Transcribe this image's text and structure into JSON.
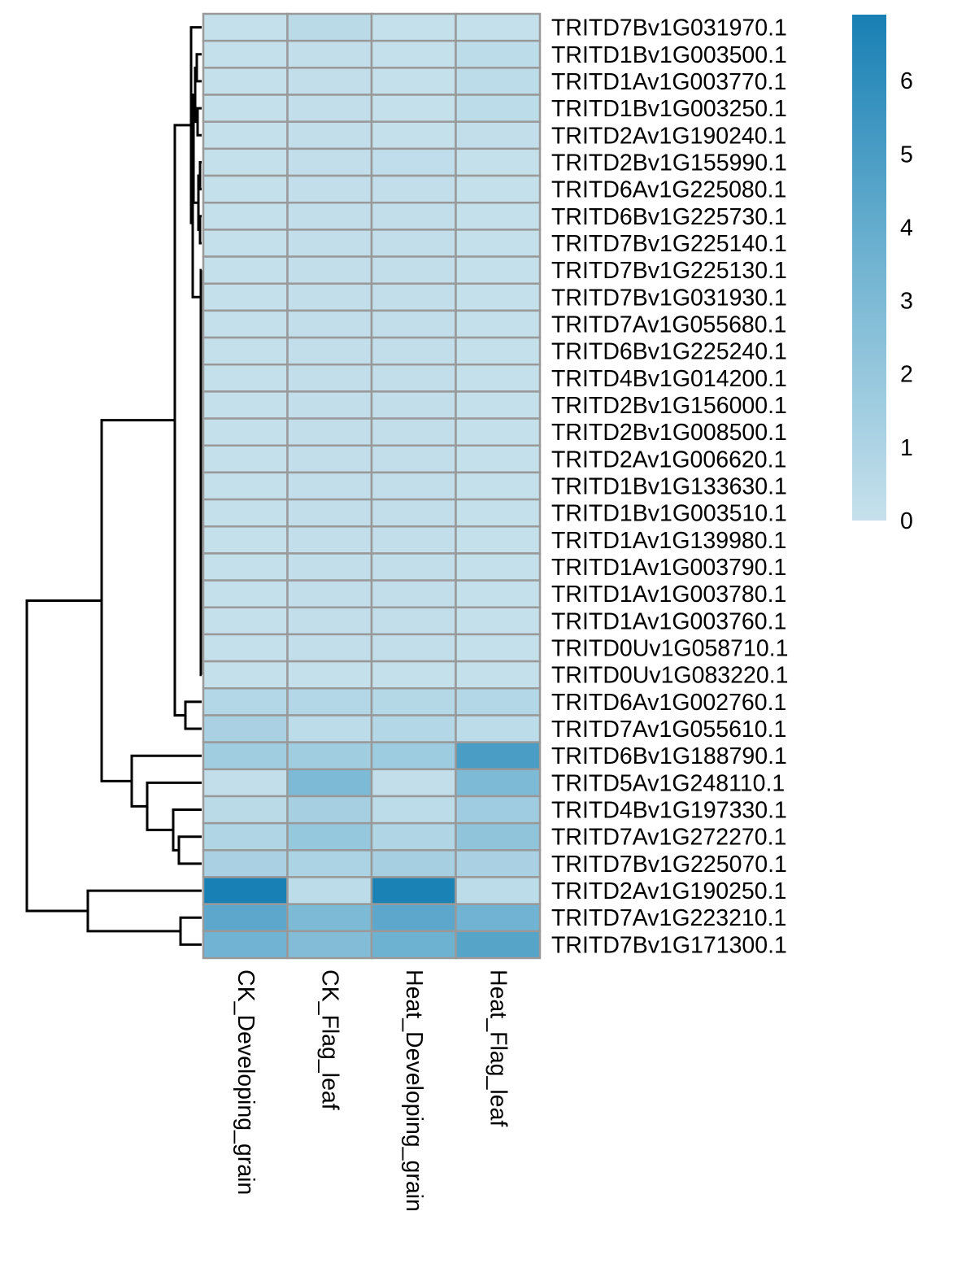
{
  "chart_data": {
    "type": "heatmap",
    "title": "",
    "columns": [
      "CK_Developing_grain",
      "CK_Flag_leaf",
      "Heat_Developing_grain",
      "Heat_Flag_leaf"
    ],
    "rows": [
      "TRITD7Bv1G031970.1",
      "TRITD1Bv1G003500.1",
      "TRITD1Av1G003770.1",
      "TRITD1Bv1G003250.1",
      "TRITD2Av1G190240.1",
      "TRITD2Bv1G155990.1",
      "TRITD6Av1G225080.1",
      "TRITD6Bv1G225730.1",
      "TRITD7Bv1G225140.1",
      "TRITD7Bv1G225130.1",
      "TRITD7Bv1G031930.1",
      "TRITD7Av1G055680.1",
      "TRITD6Bv1G225240.1",
      "TRITD4Bv1G014200.1",
      "TRITD2Bv1G156000.1",
      "TRITD2Bv1G008500.1",
      "TRITD2Av1G006620.1",
      "TRITD1Bv1G133630.1",
      "TRITD1Bv1G003510.1",
      "TRITD1Av1G139980.1",
      "TRITD1Av1G003790.1",
      "TRITD1Av1G003780.1",
      "TRITD1Av1G003760.1",
      "TRITD0Uv1G058710.1",
      "TRITD0Uv1G083220.1",
      "TRITD6Av1G002760.1",
      "TRITD7Av1G055610.1",
      "TRITD6Bv1G188790.1",
      "TRITD5Av1G248110.1",
      "TRITD4Bv1G197330.1",
      "TRITD7Av1G272270.1",
      "TRITD7Bv1G225070.1",
      "TRITD2Av1G190250.1",
      "TRITD7Av1G223210.1",
      "TRITD7Bv1G171300.1"
    ],
    "values": [
      [
        0.1,
        0.5,
        0.1,
        0.1
      ],
      [
        0.1,
        0.2,
        0.1,
        0.4
      ],
      [
        0.1,
        0.2,
        0.1,
        0.4
      ],
      [
        0.1,
        0.2,
        0.1,
        0.4
      ],
      [
        0.1,
        0.2,
        0.1,
        0.2
      ],
      [
        0.1,
        0.2,
        0.3,
        0.1
      ],
      [
        0.1,
        0.2,
        0.2,
        0.1
      ],
      [
        0.1,
        0.2,
        0.2,
        0.1
      ],
      [
        0.1,
        0.2,
        0.2,
        0.1
      ],
      [
        0.1,
        0.2,
        0.2,
        0.1
      ],
      [
        0.1,
        0.2,
        0.2,
        0.1
      ],
      [
        0.1,
        0.2,
        0.2,
        0.1
      ],
      [
        0.1,
        0.2,
        0.2,
        0.1
      ],
      [
        0.1,
        0.2,
        0.2,
        0.1
      ],
      [
        0.1,
        0.2,
        0.2,
        0.1
      ],
      [
        0.1,
        0.2,
        0.2,
        0.1
      ],
      [
        0.1,
        0.2,
        0.2,
        0.1
      ],
      [
        0.1,
        0.2,
        0.2,
        0.1
      ],
      [
        0.1,
        0.2,
        0.2,
        0.1
      ],
      [
        0.1,
        0.2,
        0.2,
        0.1
      ],
      [
        0.1,
        0.2,
        0.2,
        0.1
      ],
      [
        0.1,
        0.2,
        0.2,
        0.1
      ],
      [
        0.1,
        0.2,
        0.2,
        0.1
      ],
      [
        0.1,
        0.2,
        0.2,
        0.1
      ],
      [
        0.1,
        0.1,
        0.1,
        0.1
      ],
      [
        0.8,
        0.8,
        0.7,
        0.8
      ],
      [
        1.2,
        0.4,
        0.8,
        0.4
      ],
      [
        1.5,
        1.5,
        1.7,
        5.0
      ],
      [
        0.2,
        3.0,
        0.2,
        3.0
      ],
      [
        0.5,
        1.3,
        0.4,
        1.6
      ],
      [
        0.9,
        2.0,
        0.9,
        2.2
      ],
      [
        1.2,
        1.1,
        1.3,
        1.2
      ],
      [
        6.9,
        0.4,
        6.8,
        0.4
      ],
      [
        4.3,
        3.0,
        4.3,
        3.5
      ],
      [
        3.5,
        2.8,
        3.6,
        4.5
      ]
    ],
    "colorbar": {
      "ticks": [
        "0",
        "1",
        "2",
        "3",
        "4",
        "5",
        "6"
      ],
      "range": [
        0,
        6.9
      ]
    },
    "colors": {
      "low": "#c6e1ec",
      "mid": "#72b4d2",
      "high": "#1880b4",
      "border": "#999999"
    },
    "dendrogram": "row-clustered (left)",
    "legend": "right"
  }
}
